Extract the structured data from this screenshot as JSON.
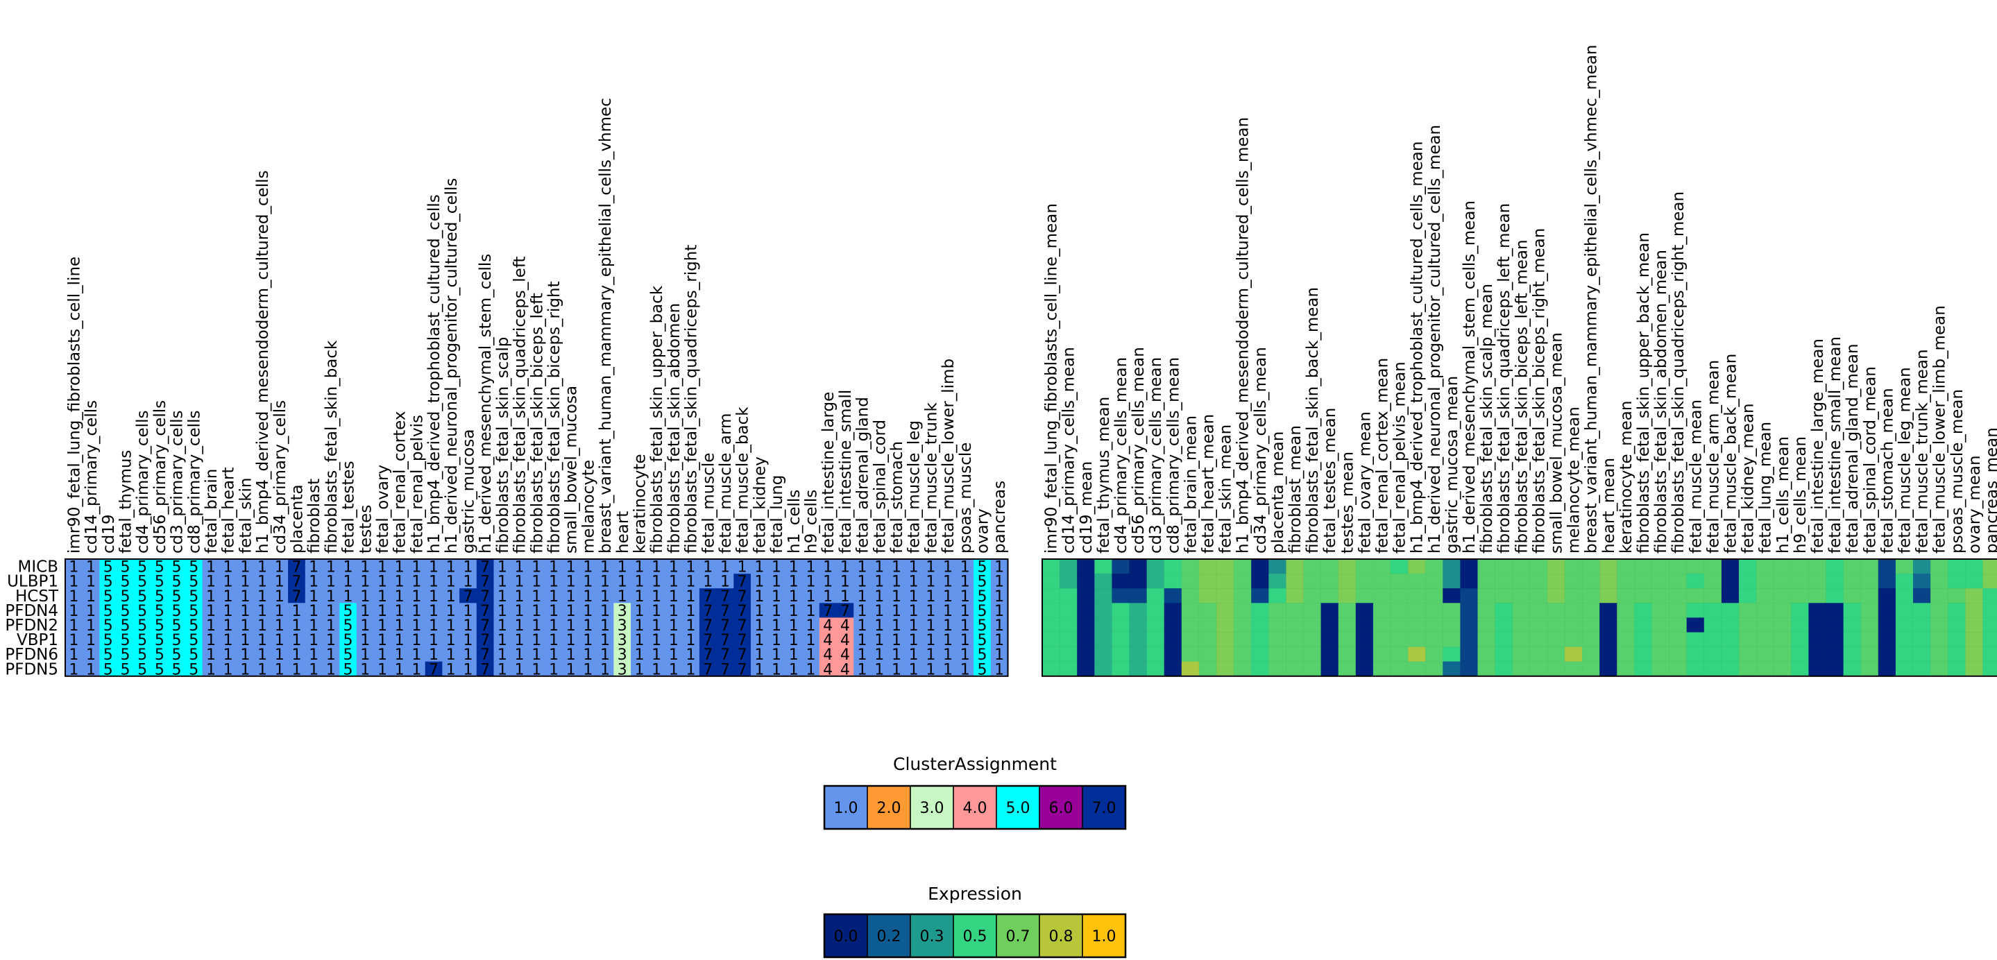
{
  "chart_data": {
    "type": "heatmap",
    "genes": [
      "MICB",
      "ULBP1",
      "HCST",
      "PFDN4",
      "PFDN2",
      "VBP1",
      "PFDN6",
      "PFDN5"
    ],
    "clusters_panel": {
      "columns": [
        "imr90_fetal_lung_fibroblasts_cell_line",
        "cd14_primary_cells",
        "cd19",
        "fetal_thymus",
        "cd4_primary_cells",
        "cd56_primary_cells",
        "cd3_primary_cells",
        "cd8_primary_cells",
        "fetal_brain",
        "fetal_heart",
        "fetal_skin",
        "h1_bmp4_derived_mesendoderm_cultured_cells",
        "cd34_primary_cells",
        "placenta",
        "fibroblast",
        "fibroblasts_fetal_skin_back",
        "fetal_testes",
        "testes",
        "fetal_ovary",
        "fetal_renal_cortex",
        "fetal_renal_pelvis",
        "h1_bmp4_derived_trophoblast_cultured_cells",
        "h1_derived_neuronal_progenitor_cultured_cells",
        "gastric_mucosa",
        "h1_derived_mesenchymal_stem_cells",
        "fibroblasts_fetal_skin_scalp",
        "fibroblasts_fetal_skin_quadriceps_left",
        "fibroblasts_fetal_skin_biceps_left",
        "fibroblasts_fetal_skin_biceps_right",
        "small_bowel_mucosa",
        "melanocyte",
        "breast_variant_human_mammary_epithelial_cells_vhmec",
        "heart",
        "keratinocyte",
        "fibroblasts_fetal_skin_upper_back",
        "fibroblasts_fetal_skin_abdomen",
        "fibroblasts_fetal_skin_quadriceps_right",
        "fetal_muscle",
        "fetal_muscle_arm",
        "fetal_muscle_back",
        "fetal_kidney",
        "fetal_lung",
        "h1_cells",
        "h9_cells",
        "fetal_intestine_large",
        "fetal_intestine_small",
        "fetal_adrenal_gland",
        "fetal_spinal_cord",
        "fetal_stomach",
        "fetal_muscle_leg",
        "fetal_muscle_trunk",
        "fetal_muscle_lower_limb",
        "psoas_muscle",
        "ovary",
        "pancreas"
      ],
      "values": [
        [
          1,
          1,
          5,
          5,
          5,
          5,
          5,
          5,
          1,
          1,
          1,
          1,
          1,
          7,
          1,
          1,
          1,
          1,
          1,
          1,
          1,
          1,
          1,
          1,
          7,
          1,
          1,
          1,
          1,
          1,
          1,
          1,
          1,
          1,
          1,
          1,
          1,
          1,
          1,
          1,
          1,
          1,
          1,
          1,
          1,
          1,
          1,
          1,
          1,
          1,
          1,
          1,
          1,
          5,
          1
        ],
        [
          1,
          1,
          5,
          5,
          5,
          5,
          5,
          5,
          1,
          1,
          1,
          1,
          1,
          7,
          1,
          1,
          1,
          1,
          1,
          1,
          1,
          1,
          1,
          1,
          7,
          1,
          1,
          1,
          1,
          1,
          1,
          1,
          1,
          1,
          1,
          1,
          1,
          1,
          1,
          7,
          1,
          1,
          1,
          1,
          1,
          1,
          1,
          1,
          1,
          1,
          1,
          1,
          1,
          5,
          1
        ],
        [
          1,
          1,
          5,
          5,
          5,
          5,
          5,
          5,
          1,
          1,
          1,
          1,
          1,
          7,
          1,
          1,
          1,
          1,
          1,
          1,
          1,
          1,
          1,
          7,
          7,
          1,
          1,
          1,
          1,
          1,
          1,
          1,
          1,
          1,
          1,
          1,
          1,
          7,
          7,
          7,
          1,
          1,
          1,
          1,
          1,
          1,
          1,
          1,
          1,
          1,
          1,
          1,
          1,
          5,
          1
        ],
        [
          1,
          1,
          5,
          5,
          5,
          5,
          5,
          5,
          1,
          1,
          1,
          1,
          1,
          1,
          1,
          1,
          5,
          1,
          1,
          1,
          1,
          1,
          1,
          1,
          7,
          1,
          1,
          1,
          1,
          1,
          1,
          1,
          3,
          1,
          1,
          1,
          1,
          7,
          7,
          7,
          1,
          1,
          1,
          1,
          7,
          7,
          1,
          1,
          1,
          1,
          1,
          1,
          1,
          5,
          1
        ],
        [
          1,
          1,
          5,
          5,
          5,
          5,
          5,
          5,
          1,
          1,
          1,
          1,
          1,
          1,
          1,
          1,
          5,
          1,
          1,
          1,
          1,
          1,
          1,
          1,
          7,
          1,
          1,
          1,
          1,
          1,
          1,
          1,
          3,
          1,
          1,
          1,
          1,
          7,
          7,
          7,
          1,
          1,
          1,
          1,
          4,
          4,
          1,
          1,
          1,
          1,
          1,
          1,
          1,
          5,
          1
        ],
        [
          1,
          1,
          5,
          5,
          5,
          5,
          5,
          5,
          1,
          1,
          1,
          1,
          1,
          1,
          1,
          1,
          5,
          1,
          1,
          1,
          1,
          1,
          1,
          1,
          7,
          1,
          1,
          1,
          1,
          1,
          1,
          1,
          3,
          1,
          1,
          1,
          1,
          7,
          7,
          7,
          1,
          1,
          1,
          1,
          4,
          4,
          1,
          1,
          1,
          1,
          1,
          1,
          1,
          5,
          1
        ],
        [
          1,
          1,
          5,
          5,
          5,
          5,
          5,
          5,
          1,
          1,
          1,
          1,
          1,
          1,
          1,
          1,
          5,
          1,
          1,
          1,
          1,
          1,
          1,
          1,
          7,
          1,
          1,
          1,
          1,
          1,
          1,
          1,
          3,
          1,
          1,
          1,
          1,
          7,
          7,
          7,
          1,
          1,
          1,
          1,
          4,
          4,
          1,
          1,
          1,
          1,
          1,
          1,
          1,
          5,
          1
        ],
        [
          1,
          1,
          5,
          5,
          5,
          5,
          5,
          5,
          1,
          1,
          1,
          1,
          1,
          1,
          1,
          1,
          5,
          1,
          1,
          1,
          1,
          7,
          1,
          1,
          7,
          1,
          1,
          1,
          1,
          1,
          1,
          1,
          3,
          1,
          1,
          1,
          1,
          7,
          7,
          7,
          1,
          1,
          1,
          1,
          4,
          4,
          1,
          1,
          1,
          1,
          1,
          1,
          1,
          5,
          1
        ]
      ],
      "colors": {
        "1": "#6495ed",
        "2": "#ff9a33",
        "3": "#c9f7c4",
        "4": "#ff9999",
        "5": "#00ffff",
        "6": "#990099",
        "7": "#002e99"
      }
    },
    "expression_panel": {
      "columns": [
        "imr90_fetal_lung_fibroblasts_cell_line_mean",
        "cd14_primary_cells_mean",
        "cd19_mean",
        "fetal_thymus_mean",
        "cd4_primary_cells_mean",
        "cd56_primary_cells_mean",
        "cd3_primary_cells_mean",
        "cd8_primary_cells_mean",
        "fetal_brain_mean",
        "fetal_heart_mean",
        "fetal_skin_mean",
        "h1_bmp4_derived_mesendoderm_cultured_cells_mean",
        "cd34_primary_cells_mean",
        "placenta_mean",
        "fibroblast_mean",
        "fibroblasts_fetal_skin_back_mean",
        "fetal_testes_mean",
        "testes_mean",
        "fetal_ovary_mean",
        "fetal_renal_cortex_mean",
        "fetal_renal_pelvis_mean",
        "h1_bmp4_derived_trophoblast_cultured_cells_mean",
        "h1_derived_neuronal_progenitor_cultured_cells_mean",
        "gastric_mucosa_mean",
        "h1_derived_mesenchymal_stem_cells_mean",
        "fibroblasts_fetal_skin_scalp_mean",
        "fibroblasts_fetal_skin_quadriceps_left_mean",
        "fibroblasts_fetal_skin_biceps_left_mean",
        "fibroblasts_fetal_skin_biceps_right_mean",
        "small_bowel_mucosa_mean",
        "melanocyte_mean",
        "breast_variant_human_mammary_epithelial_cells_vhmec_mean",
        "heart_mean",
        "keratinocyte_mean",
        "fibroblasts_fetal_skin_upper_back_mean",
        "fibroblasts_fetal_skin_abdomen_mean",
        "fibroblasts_fetal_skin_quadriceps_right_mean",
        "fetal_muscle_mean",
        "fetal_muscle_arm_mean",
        "fetal_muscle_back_mean",
        "fetal_kidney_mean",
        "fetal_lung_mean",
        "h1_cells_mean",
        "h9_cells_mean",
        "fetal_intestine_large_mean",
        "fetal_intestine_small_mean",
        "fetal_adrenal_gland_mean",
        "fetal_spinal_cord_mean",
        "fetal_stomach_mean",
        "fetal_muscle_leg_mean",
        "fetal_muscle_trunk_mean",
        "fetal_muscle_lower_limb_mean",
        "psoas_muscle_mean",
        "ovary_mean",
        "pancreas_mean"
      ],
      "values": [
        [
          0.5,
          0.4,
          0.0,
          0.5,
          0.1,
          0.0,
          0.4,
          0.5,
          0.6,
          0.7,
          0.7,
          0.6,
          0.0,
          0.3,
          0.7,
          0.6,
          0.6,
          0.7,
          0.6,
          0.6,
          0.5,
          0.7,
          0.6,
          0.3,
          0.0,
          0.6,
          0.6,
          0.6,
          0.6,
          0.7,
          0.6,
          0.6,
          0.7,
          0.6,
          0.6,
          0.6,
          0.6,
          0.6,
          0.6,
          0.0,
          0.5,
          0.6,
          0.6,
          0.6,
          0.6,
          0.5,
          0.6,
          0.6,
          0.1,
          0.6,
          0.3,
          0.6,
          0.5,
          0.5,
          0.7
        ],
        [
          0.5,
          0.4,
          0.0,
          0.4,
          0.0,
          0.0,
          0.4,
          0.5,
          0.6,
          0.7,
          0.7,
          0.6,
          0.0,
          0.4,
          0.7,
          0.6,
          0.6,
          0.7,
          0.6,
          0.6,
          0.6,
          0.6,
          0.6,
          0.3,
          0.0,
          0.6,
          0.6,
          0.6,
          0.6,
          0.7,
          0.6,
          0.6,
          0.7,
          0.6,
          0.6,
          0.6,
          0.6,
          0.5,
          0.6,
          0.0,
          0.5,
          0.6,
          0.6,
          0.6,
          0.6,
          0.5,
          0.6,
          0.6,
          0.1,
          0.5,
          0.2,
          0.6,
          0.5,
          0.5,
          0.7
        ],
        [
          0.5,
          0.5,
          0.0,
          0.4,
          0.1,
          0.1,
          0.5,
          0.1,
          0.6,
          0.7,
          0.7,
          0.6,
          0.1,
          0.5,
          0.7,
          0.6,
          0.6,
          0.7,
          0.6,
          0.6,
          0.6,
          0.6,
          0.6,
          0.0,
          0.1,
          0.6,
          0.6,
          0.6,
          0.6,
          0.7,
          0.6,
          0.6,
          0.7,
          0.6,
          0.6,
          0.6,
          0.6,
          0.6,
          0.6,
          0.0,
          0.5,
          0.6,
          0.6,
          0.6,
          0.6,
          0.5,
          0.6,
          0.6,
          0.0,
          0.5,
          0.1,
          0.6,
          0.6,
          0.7,
          0.5
        ],
        [
          0.5,
          0.5,
          0.0,
          0.4,
          0.5,
          0.4,
          0.5,
          0.0,
          0.6,
          0.6,
          0.7,
          0.6,
          0.5,
          0.6,
          0.6,
          0.6,
          0.0,
          0.6,
          0.0,
          0.6,
          0.6,
          0.6,
          0.6,
          0.6,
          0.1,
          0.6,
          0.5,
          0.6,
          0.6,
          0.6,
          0.6,
          0.6,
          0.0,
          0.6,
          0.5,
          0.6,
          0.6,
          0.5,
          0.5,
          0.5,
          0.6,
          0.6,
          0.6,
          0.5,
          0.0,
          0.0,
          0.5,
          0.6,
          0.0,
          0.5,
          0.5,
          0.6,
          0.5,
          0.7,
          0.5
        ],
        [
          0.5,
          0.5,
          0.0,
          0.4,
          0.5,
          0.4,
          0.5,
          0.0,
          0.6,
          0.6,
          0.7,
          0.6,
          0.5,
          0.6,
          0.6,
          0.6,
          0.0,
          0.6,
          0.0,
          0.6,
          0.6,
          0.6,
          0.6,
          0.6,
          0.1,
          0.6,
          0.5,
          0.6,
          0.6,
          0.6,
          0.6,
          0.6,
          0.0,
          0.6,
          0.5,
          0.6,
          0.6,
          0.0,
          0.5,
          0.5,
          0.6,
          0.6,
          0.6,
          0.5,
          0.0,
          0.0,
          0.5,
          0.6,
          0.0,
          0.5,
          0.5,
          0.6,
          0.5,
          0.7,
          0.5
        ],
        [
          0.5,
          0.5,
          0.0,
          0.4,
          0.5,
          0.4,
          0.5,
          0.0,
          0.6,
          0.6,
          0.7,
          0.6,
          0.5,
          0.6,
          0.6,
          0.6,
          0.0,
          0.6,
          0.0,
          0.6,
          0.6,
          0.6,
          0.6,
          0.6,
          0.1,
          0.6,
          0.5,
          0.6,
          0.6,
          0.6,
          0.6,
          0.6,
          0.0,
          0.6,
          0.5,
          0.6,
          0.6,
          0.5,
          0.5,
          0.5,
          0.6,
          0.6,
          0.6,
          0.5,
          0.0,
          0.0,
          0.5,
          0.6,
          0.0,
          0.5,
          0.5,
          0.6,
          0.5,
          0.7,
          0.5
        ],
        [
          0.5,
          0.5,
          0.0,
          0.4,
          0.5,
          0.4,
          0.5,
          0.0,
          0.6,
          0.6,
          0.7,
          0.6,
          0.5,
          0.6,
          0.6,
          0.6,
          0.0,
          0.6,
          0.0,
          0.6,
          0.6,
          0.8,
          0.6,
          0.5,
          0.1,
          0.6,
          0.5,
          0.6,
          0.6,
          0.6,
          0.8,
          0.6,
          0.0,
          0.6,
          0.5,
          0.6,
          0.6,
          0.5,
          0.5,
          0.5,
          0.6,
          0.6,
          0.6,
          0.5,
          0.0,
          0.0,
          0.5,
          0.6,
          0.0,
          0.5,
          0.5,
          0.6,
          0.5,
          0.7,
          0.5
        ],
        [
          0.5,
          0.5,
          0.0,
          0.4,
          0.5,
          0.4,
          0.5,
          0.0,
          0.8,
          0.6,
          0.7,
          0.6,
          0.5,
          0.6,
          0.6,
          0.6,
          0.0,
          0.6,
          0.0,
          0.6,
          0.6,
          0.6,
          0.6,
          0.2,
          0.1,
          0.6,
          0.5,
          0.6,
          0.6,
          0.6,
          0.6,
          0.6,
          0.0,
          0.6,
          0.5,
          0.6,
          0.6,
          0.5,
          0.5,
          0.5,
          0.6,
          0.6,
          0.6,
          0.5,
          0.0,
          0.0,
          0.5,
          0.6,
          0.0,
          0.5,
          0.5,
          0.6,
          0.5,
          0.7,
          0.5
        ]
      ]
    },
    "cluster_legend": {
      "title": "ClusterAssignment",
      "entries": [
        {
          "label": "1.0",
          "color": "#6495ed",
          "text_color": "#000000"
        },
        {
          "label": "2.0",
          "color": "#ff9a33",
          "text_color": "#000000"
        },
        {
          "label": "3.0",
          "color": "#c9f7c4",
          "text_color": "#000000"
        },
        {
          "label": "4.0",
          "color": "#ff9999",
          "text_color": "#000000"
        },
        {
          "label": "5.0",
          "color": "#00ffff",
          "text_color": "#000000"
        },
        {
          "label": "6.0",
          "color": "#990099",
          "text_color": "#ffffff"
        },
        {
          "label": "7.0",
          "color": "#002e99",
          "text_color": "#ffffff"
        }
      ]
    },
    "expression_legend": {
      "title": "Expression",
      "entries": [
        {
          "label": "0.0",
          "color": "#00207a",
          "text_color": "#ffffff"
        },
        {
          "label": "0.2",
          "color": "#0d5c91",
          "text_color": "#ffffff"
        },
        {
          "label": "0.3",
          "color": "#1f9a8e",
          "text_color": "#ffffff"
        },
        {
          "label": "0.5",
          "color": "#33d482",
          "text_color": "#000000"
        },
        {
          "label": "0.7",
          "color": "#6fcf5d",
          "text_color": "#000000"
        },
        {
          "label": "0.8",
          "color": "#b8c63a",
          "text_color": "#000000"
        },
        {
          "label": "1.0",
          "color": "#ffc20a",
          "text_color": "#000000"
        }
      ]
    }
  }
}
